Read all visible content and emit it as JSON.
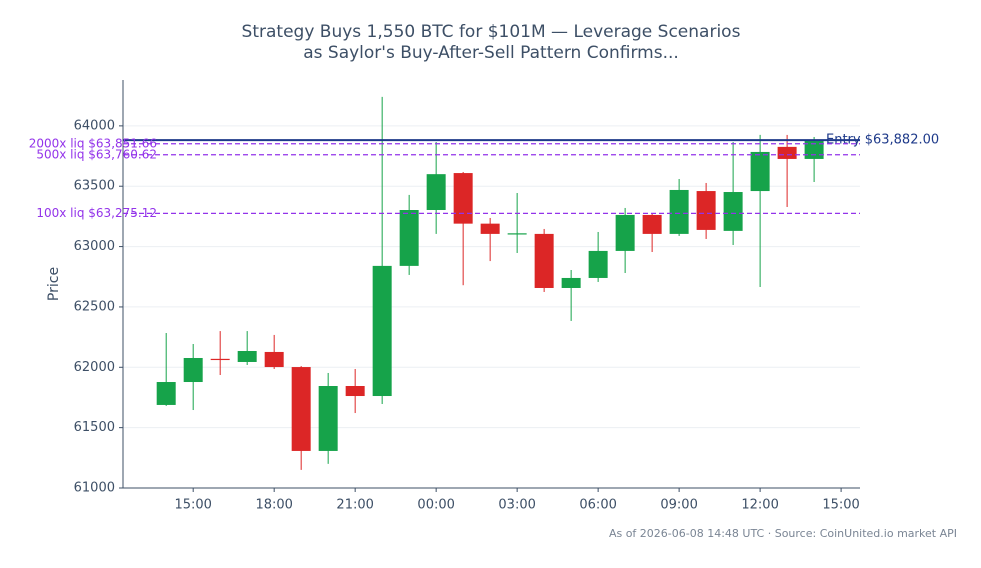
{
  "chart_data": {
    "type": "candlestick",
    "title": "Strategy Buys 1,550 BTC for $101M — Leverage Scenarios",
    "subtitle": "as Saylor's Buy-After-Sell Pattern Confirms...",
    "y_label": "Price",
    "source": "As of 2026-06-08 14:48 UTC · Source: CoinUnited.io market API",
    "x": [
      0,
      1,
      2,
      3,
      4,
      5,
      6,
      7,
      8,
      9,
      10,
      11,
      12,
      13,
      14,
      15,
      16,
      17,
      18,
      19,
      20,
      21,
      22,
      23,
      24
    ],
    "xlim": [
      -1.6,
      25.7
    ],
    "xticks": [
      {
        "value": 1,
        "label": "15:00"
      },
      {
        "value": 4,
        "label": "18:00"
      },
      {
        "value": 7,
        "label": "21:00"
      },
      {
        "value": 10,
        "label": "00:00"
      },
      {
        "value": 13,
        "label": "03:00"
      },
      {
        "value": 16,
        "label": "06:00"
      },
      {
        "value": 19,
        "label": "09:00"
      },
      {
        "value": 22,
        "label": "12:00"
      },
      {
        "value": 25,
        "label": "15:00"
      }
    ],
    "ylim": [
      61000,
      64380
    ],
    "yticks": [
      61000,
      61500,
      62000,
      62500,
      63000,
      63500,
      64000
    ],
    "grid": true,
    "up_color": "#16a34a",
    "down_color": "#dc2626",
    "open": [
      61688,
      61878,
      62070,
      62044,
      62127,
      62002,
      61307,
      61845,
      61762,
      62840,
      63303,
      63609,
      63190,
      63100,
      63105,
      62657,
      62740,
      62964,
      63262,
      63105,
      63460,
      63130,
      63460,
      63826,
      63726
    ],
    "high": [
      62284,
      62193,
      62300,
      62300,
      62268,
      62010,
      61953,
      61986,
      64240,
      63428,
      63866,
      63618,
      63237,
      63444,
      63146,
      62806,
      63121,
      63320,
      63270,
      63560,
      63527,
      63866,
      63925,
      63925,
      63908
    ],
    "low": [
      61680,
      61646,
      61936,
      62019,
      61986,
      61150,
      61200,
      61621,
      61696,
      62765,
      63105,
      62680,
      62880,
      62947,
      62624,
      62384,
      62707,
      62781,
      62955,
      63088,
      63063,
      63013,
      62665,
      63328,
      63535
    ],
    "close": [
      61878,
      62077,
      62060,
      62135,
      62002,
      61307,
      61845,
      61762,
      62840,
      63303,
      63600,
      63190,
      63105,
      63110,
      62657,
      62740,
      62964,
      63262,
      63105,
      63469,
      63138,
      63452,
      63784,
      63726,
      63882
    ],
    "lines": [
      {
        "label": "Entry $63,882.00",
        "value": 63882,
        "color": "#1e3a8a",
        "style": "solid"
      },
      {
        "label": "2000x liq $63,851.66",
        "value": 63851.66,
        "color": "#9333ea",
        "style": "dashed"
      },
      {
        "label": "500x liq $63,760.62",
        "value": 63760.62,
        "color": "#9333ea",
        "style": "dashed"
      },
      {
        "label": "100x liq $63,275.12",
        "value": 63275.12,
        "color": "#9333ea",
        "style": "dashed"
      }
    ]
  }
}
